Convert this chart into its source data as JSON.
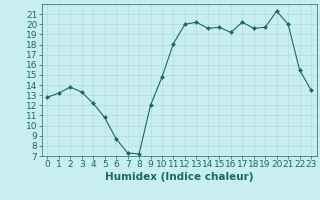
{
  "x": [
    0,
    1,
    2,
    3,
    4,
    5,
    6,
    7,
    8,
    9,
    10,
    11,
    12,
    13,
    14,
    15,
    16,
    17,
    18,
    19,
    20,
    21,
    22,
    23
  ],
  "y": [
    12.8,
    13.2,
    13.8,
    13.3,
    12.2,
    10.8,
    8.7,
    7.3,
    7.2,
    12.0,
    14.8,
    18.1,
    20.0,
    20.2,
    19.6,
    19.7,
    19.2,
    20.2,
    19.6,
    19.7,
    21.3,
    20.0,
    15.5,
    13.5
  ],
  "xlabel": "Humidex (Indice chaleur)",
  "xlim": [
    -0.5,
    23.5
  ],
  "ylim": [
    7,
    22
  ],
  "yticks": [
    7,
    8,
    9,
    10,
    11,
    12,
    13,
    14,
    15,
    16,
    17,
    18,
    19,
    20,
    21
  ],
  "xticks": [
    0,
    1,
    2,
    3,
    4,
    5,
    6,
    7,
    8,
    9,
    10,
    11,
    12,
    13,
    14,
    15,
    16,
    17,
    18,
    19,
    20,
    21,
    22,
    23
  ],
  "line_color": "#1a6b5a",
  "marker_color": "#1a6b5a",
  "bg_color": "#c8eef0",
  "grid_color": "#b0dce0",
  "tick_color": "#1a6b5a",
  "label_color": "#1a6b5a",
  "font_size": 6.5,
  "xlabel_fontsize": 7.5
}
